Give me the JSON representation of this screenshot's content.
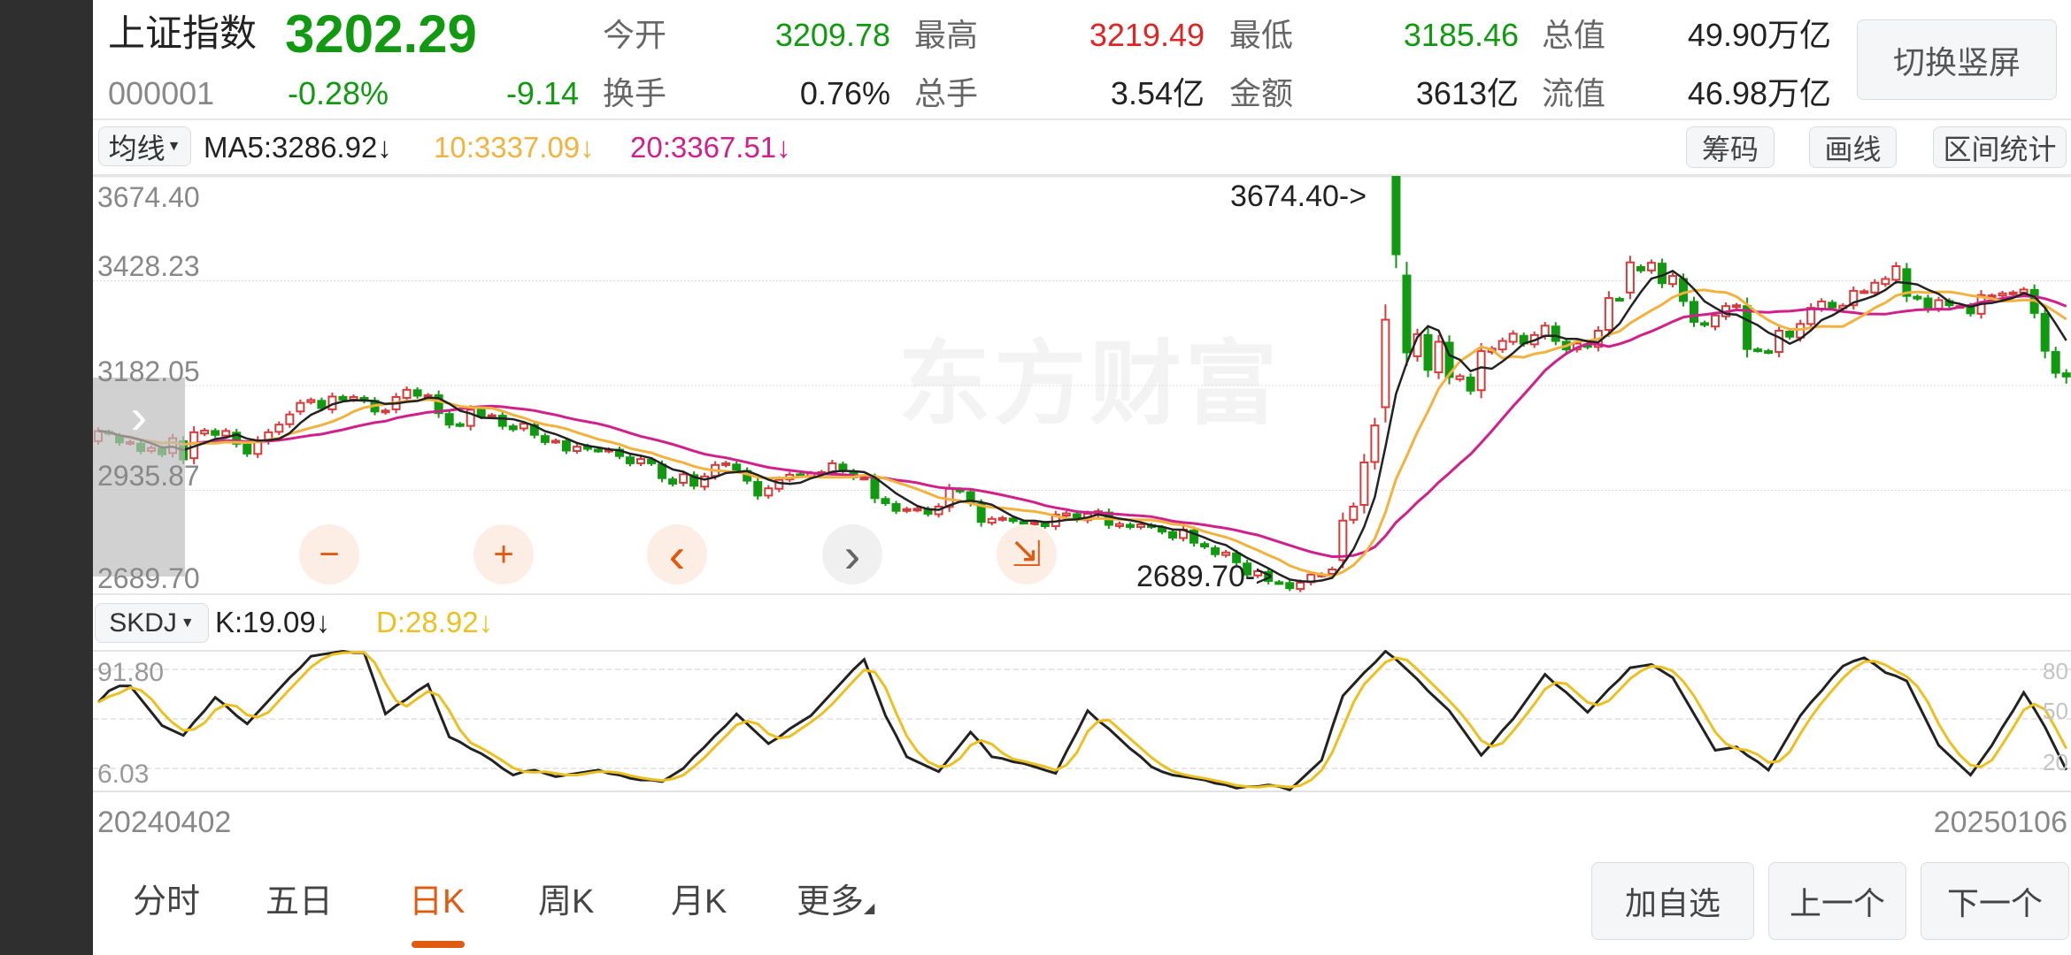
{
  "header": {
    "name": "上证指数",
    "code": "000001",
    "price": "3202.29",
    "change_pct": "-0.28%",
    "change": "-9.14",
    "switch_button": "切换竖屏",
    "stats": [
      {
        "label": "今开",
        "value": "3209.78",
        "color": "#119a11"
      },
      {
        "label": "最高",
        "value": "3219.49",
        "color": "#e02424"
      },
      {
        "label": "最低",
        "value": "3185.46",
        "color": "#119a11"
      },
      {
        "label": "总值",
        "value": "49.90万亿",
        "color": "#222222"
      },
      {
        "label": "换手",
        "value": "0.76%",
        "color": "#222222"
      },
      {
        "label": "总手",
        "value": "3.54亿",
        "color": "#222222"
      },
      {
        "label": "金额",
        "value": "3613亿",
        "color": "#222222"
      },
      {
        "label": "流值",
        "value": "46.98万亿",
        "color": "#222222"
      }
    ]
  },
  "ma_bar": {
    "selector": "均线",
    "ma5": "MA5:3286.92↓",
    "ma10": "10:3337.09↓",
    "ma20": "20:3367.51↓",
    "tools": [
      "筹码",
      "画线",
      "区间统计"
    ]
  },
  "colors": {
    "up": "#d63a3a",
    "down": "#119a11",
    "ma5": "#222222",
    "ma10": "#f2b23e",
    "ma20": "#d0208a",
    "k": "#222222",
    "d": "#ecc020",
    "accent": "#e05a10"
  },
  "price_axis": [
    "3674.40",
    "3428.23",
    "3182.05",
    "2935.87",
    "2689.70"
  ],
  "annotations": {
    "high": "3674.40->",
    "low": "2689.70->"
  },
  "watermark": "东方财富",
  "nav_buttons": [
    {
      "name": "zoom-out",
      "icon": "−"
    },
    {
      "name": "zoom-in",
      "icon": "+"
    },
    {
      "name": "move-left",
      "icon": "‹"
    },
    {
      "name": "move-right",
      "icon": "›"
    },
    {
      "name": "collapse",
      "icon": "⇲"
    }
  ],
  "indicator_bar": {
    "selector": "SKDJ",
    "k": "K:19.09↓",
    "d": "D:28.92↓",
    "left_axis": [
      "91.80",
      "6.03"
    ],
    "right_axis": [
      "80",
      "50",
      "20"
    ]
  },
  "dates": {
    "start": "20240402",
    "end": "20250106"
  },
  "tabs": [
    {
      "label": "分时",
      "active": false
    },
    {
      "label": "五日",
      "active": false
    },
    {
      "label": "日K",
      "active": true
    },
    {
      "label": "周K",
      "active": false
    },
    {
      "label": "月K",
      "active": false
    },
    {
      "label": "更多",
      "active": false
    }
  ],
  "actions": [
    "加自选",
    "上一个",
    "下一个"
  ],
  "chart_data": [
    {
      "type": "candlestick",
      "ylim": [
        2689.7,
        3674.4
      ],
      "x_range": [
        "20240402",
        "20250106"
      ],
      "grid": true,
      "max_high": 3674.4,
      "min_low": 2689.7,
      "last": {
        "open": 3209.78,
        "high": 3219.49,
        "low": 3185.46,
        "close": 3202.29
      },
      "ma_periods": [
        5,
        10,
        20
      ],
      "open": [
        3050,
        3072,
        3062,
        3045,
        3044,
        3027,
        3032,
        3022,
        3050,
        3010,
        3068,
        3074,
        3063,
        3070,
        3042,
        3020,
        3050,
        3072,
        3090,
        3120,
        3142,
        3145,
        3125,
        3154,
        3148,
        3152,
        3145,
        3118,
        3125,
        3152,
        3170,
        3156,
        3158,
        3114,
        3090,
        3086,
        3124,
        3108,
        3110,
        3085,
        3080,
        3088,
        3062,
        3049,
        3050,
        3027,
        3038,
        3030,
        3027,
        3030,
        3012,
        2998,
        3006,
        2995,
        2960,
        2952,
        2970,
        2943,
        2968,
        2994,
        2995,
        2980,
        2954,
        2922,
        2938,
        2960,
        2972,
        2968,
        2974,
        2977,
        2995,
        2978,
        2963,
        2962,
        2914,
        2902,
        2886,
        2888,
        2890,
        2878,
        2895,
        2936,
        2930,
        2902,
        2858,
        2866,
        2868,
        2860,
        2857,
        2856,
        2850,
        2875,
        2878,
        2864,
        2877,
        2882,
        2850,
        2853,
        2848,
        2852,
        2846,
        2836,
        2822,
        2840,
        2808,
        2798,
        2782,
        2786,
        2762,
        2734,
        2742,
        2718,
        2716,
        2702,
        2718,
        2734,
        2738,
        2770,
        2865,
        2900,
        3001,
        3130,
        3674.4,
        3440,
        3250,
        3300,
        3212,
        3282,
        3196,
        3200,
        3170,
        3260,
        3266,
        3284,
        3298,
        3278,
        3298,
        3320,
        3284,
        3266,
        3278,
        3272,
        3312,
        3385,
        3400,
        3460,
        3452,
        3468,
        3420,
        3432,
        3378,
        3328,
        3320,
        3344,
        3366,
        3368,
        3266,
        3262,
        3260,
        3308,
        3294,
        3326,
        3362,
        3376,
        3363,
        3370,
        3402,
        3400,
        3420,
        3430,
        3455,
        3390,
        3386,
        3362,
        3380,
        3368,
        3368,
        3350,
        3392,
        3393,
        3398,
        3400,
        3406,
        3350,
        3260,
        3209.78
      ],
      "close": [
        3074,
        3069,
        3047,
        3048,
        3027,
        3034,
        3019,
        3057,
        3007,
        3071,
        3075,
        3065,
        3074,
        3044,
        3021,
        3052,
        3071,
        3089,
        3113,
        3140,
        3147,
        3128,
        3155,
        3148,
        3154,
        3145,
        3120,
        3122,
        3154,
        3171,
        3157,
        3158,
        3116,
        3089,
        3088,
        3124,
        3109,
        3111,
        3086,
        3078,
        3091,
        3065,
        3048,
        3051,
        3028,
        3037,
        3032,
        3028,
        3030,
        3015,
        2998,
        3008,
        2998,
        2963,
        2950,
        2972,
        2945,
        2967,
        2994,
        2998,
        2982,
        2957,
        2922,
        2939,
        2959,
        2971,
        2970,
        2974,
        2977,
        2998,
        2982,
        2965,
        2964,
        2916,
        2904,
        2886,
        2890,
        2891,
        2879,
        2896,
        2938,
        2932,
        2905,
        2860,
        2867,
        2869,
        2862,
        2858,
        2858,
        2850,
        2877,
        2880,
        2866,
        2879,
        2885,
        2853,
        2855,
        2848,
        2854,
        2849,
        2837,
        2823,
        2842,
        2811,
        2802,
        2784,
        2788,
        2765,
        2736,
        2744,
        2721,
        2717,
        2704,
        2717,
        2736,
        2736,
        2748,
        2863,
        2896,
        3000,
        3087,
        3336,
        3490,
        3259,
        3302,
        3218,
        3284,
        3201,
        3203,
        3169,
        3262,
        3268,
        3286,
        3303,
        3280,
        3300,
        3322,
        3286,
        3266,
        3280,
        3272,
        3310,
        3387,
        3384,
        3471,
        3452,
        3470,
        3422,
        3439,
        3380,
        3331,
        3324,
        3346,
        3368,
        3370,
        3267,
        3264,
        3260,
        3310,
        3296,
        3326,
        3364,
        3379,
        3365,
        3369,
        3404,
        3403,
        3423,
        3432,
        3462,
        3392,
        3386,
        3361,
        3382,
        3370,
        3368,
        3351,
        3394,
        3393,
        3398,
        3400,
        3407,
        3352,
        3263,
        3211,
        3202.29
      ]
    },
    {
      "type": "line",
      "name": "SKDJ",
      "ylim": [
        0,
        100
      ],
      "reference_lines": [
        80,
        50,
        20
      ],
      "K": [
        60,
        67,
        70,
        70,
        62,
        54,
        46,
        43,
        40,
        48,
        55,
        63,
        58,
        52,
        47,
        54,
        61,
        68,
        75,
        81,
        88,
        89,
        90,
        91,
        90,
        90,
        72,
        53,
        58,
        62,
        67,
        71,
        55,
        39,
        36,
        32,
        29,
        25,
        20,
        16,
        18,
        19,
        17,
        15,
        16,
        17,
        18,
        19,
        17,
        16,
        14,
        13,
        13,
        12,
        16,
        20,
        27,
        33,
        40,
        46,
        53,
        47,
        41,
        35,
        39,
        44,
        48,
        52,
        59,
        66,
        73,
        80,
        86,
        69,
        52,
        40,
        27,
        24,
        21,
        18,
        26,
        34,
        42,
        35,
        27,
        26,
        24,
        23,
        21,
        19,
        17,
        30,
        42,
        55,
        49,
        44,
        38,
        32,
        27,
        21,
        18,
        16,
        15,
        14,
        13,
        11,
        10,
        8,
        9,
        9,
        10,
        9,
        7,
        13,
        19,
        25,
        45,
        64,
        71,
        78,
        84,
        91,
        86,
        80,
        74,
        67,
        61,
        55,
        46,
        37,
        28,
        35,
        43,
        50,
        59,
        68,
        77,
        71,
        66,
        60,
        54,
        61,
        68,
        74,
        81,
        82,
        83,
        79,
        75,
        64,
        53,
        42,
        31,
        32,
        33,
        28,
        24,
        19,
        30,
        41,
        52,
        60,
        67,
        75,
        82,
        85,
        87,
        83,
        78,
        76,
        73,
        60,
        47,
        34,
        28,
        22,
        16,
        25,
        34,
        45,
        55,
        66,
        56,
        45,
        32,
        19.09
      ]
    }
  ]
}
